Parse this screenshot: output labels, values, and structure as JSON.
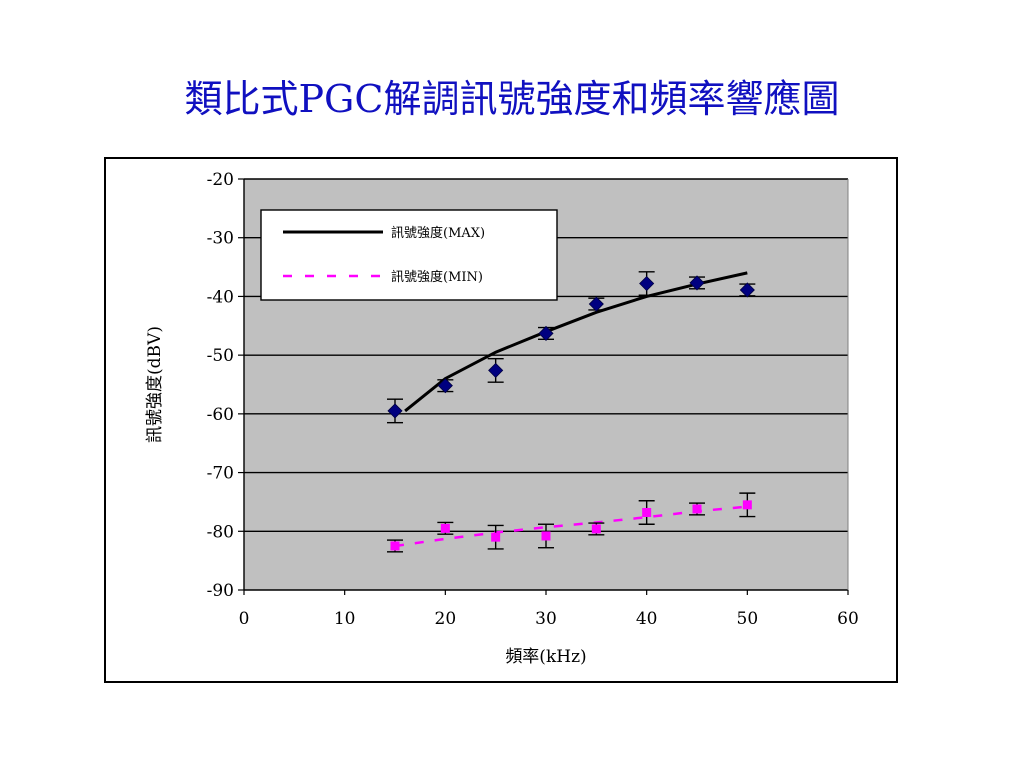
{
  "slide": {
    "title": "類比式PGC解調訊號強度和頻率響應圖"
  },
  "colors": {
    "plot_background": "#c0c0c0",
    "max_series": "#000080",
    "max_curve": "#000000",
    "min_series": "#ff00ff",
    "title": "#1010c0"
  },
  "chart_data": {
    "type": "scatter",
    "xlabel": "頻率(kHz)",
    "ylabel": "訊號強度(dBV)",
    "xlim": [
      0,
      60
    ],
    "ylim": [
      -90,
      -20
    ],
    "xticks": [
      "0",
      "10",
      "20",
      "30",
      "40",
      "50",
      "60"
    ],
    "yticks": [
      "-20",
      "-30",
      "-40",
      "-50",
      "-60",
      "-70",
      "-80",
      "-90"
    ],
    "grid": true,
    "legend": {
      "placement": "top-left",
      "entries": [
        "訊號強度(MAX)",
        "訊號強度(MIN)"
      ]
    },
    "series": [
      {
        "name": "訊號強度(MAX)",
        "marker": "diamond",
        "x": [
          15,
          20,
          25,
          30,
          35,
          40,
          45,
          50
        ],
        "y": [
          -59.5,
          -55.2,
          -52.6,
          -46.3,
          -41.3,
          -37.8,
          -37.7,
          -38.9
        ],
        "err": [
          2,
          1,
          2,
          1,
          1,
          2,
          1,
          1
        ],
        "fit": {
          "style": "solid",
          "x": [
            16,
            20,
            25,
            30,
            35,
            40,
            45,
            50
          ],
          "y": [
            -59.5,
            -54.0,
            -49.5,
            -46.0,
            -42.7,
            -40.0,
            -37.9,
            -36.0
          ]
        }
      },
      {
        "name": "訊號強度(MIN)",
        "marker": "square",
        "x": [
          15,
          20,
          25,
          30,
          35,
          40,
          45,
          50
        ],
        "y": [
          -82.5,
          -79.5,
          -81,
          -80.8,
          -79.6,
          -76.8,
          -76.2,
          -75.5
        ],
        "err": [
          1,
          1,
          2,
          2,
          1,
          2,
          1,
          2
        ],
        "fit": {
          "style": "dashed",
          "x": [
            15,
            20,
            25,
            30,
            35,
            40,
            45,
            50
          ],
          "y": [
            -82.5,
            -81.3,
            -80.2,
            -79.3,
            -78.5,
            -77.6,
            -76.6,
            -75.8
          ]
        }
      }
    ]
  }
}
